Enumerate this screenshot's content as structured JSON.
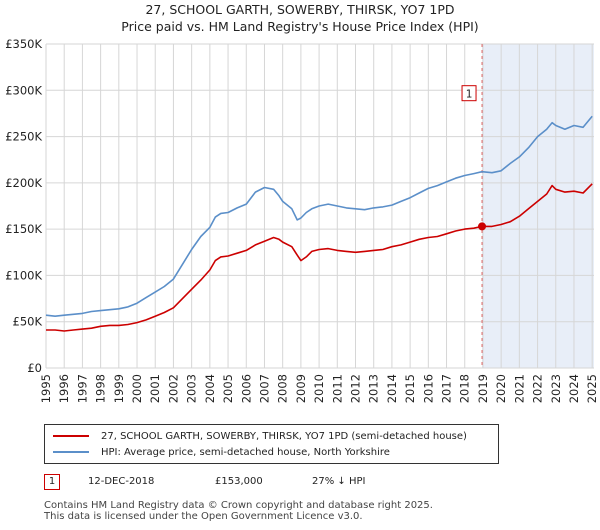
{
  "title_line1": "27, SCHOOL GARTH, SOWERBY, THIRSK, YO7 1PD",
  "title_line2": "Price paid vs. HM Land Registry's House Price Index (HPI)",
  "chart_data": {
    "type": "line",
    "title": "Price paid vs. HM Land Registry's House Price Index (HPI)",
    "xlim": [
      1995.0,
      2025.1
    ],
    "ylim": [
      0,
      350000
    ],
    "x_ticks": [
      1995,
      1996,
      1997,
      1998,
      1999,
      2000,
      2001,
      2002,
      2003,
      2004,
      2005,
      2006,
      2007,
      2008,
      2009,
      2010,
      2011,
      2012,
      2013,
      2014,
      2015,
      2016,
      2017,
      2018,
      2019,
      2020,
      2021,
      2022,
      2023,
      2024,
      2025
    ],
    "x_tick_labels": [
      "1995",
      "1996",
      "1997",
      "1998",
      "1999",
      "2000",
      "2001",
      "2002",
      "2003",
      "2004",
      "2005",
      "2006",
      "2007",
      "2008",
      "2009",
      "2010",
      "2011",
      "2012",
      "2013",
      "2014",
      "2015",
      "2016",
      "2017",
      "2018",
      "2019",
      "2020",
      "2021",
      "2022",
      "2023",
      "2024",
      "2025"
    ],
    "y_ticks": [
      0,
      50000,
      100000,
      150000,
      200000,
      250000,
      300000,
      350000
    ],
    "y_tick_labels": [
      "£0",
      "£50K",
      "£100K",
      "£150K",
      "£200K",
      "£250K",
      "£300K",
      "£350K"
    ],
    "grid": true,
    "shaded_region": [
      2018.95,
      2025.1
    ],
    "series": [
      {
        "name": "27, SCHOOL GARTH, SOWERBY, THIRSK, YO7 1PD (semi-detached house)",
        "color": "#cc0000",
        "x": [
          1995.0,
          1995.5,
          1996.0,
          1996.5,
          1997.0,
          1997.5,
          1998.0,
          1998.5,
          1999.0,
          1999.5,
          2000.0,
          2000.5,
          2001.0,
          2001.5,
          2002.0,
          2002.5,
          2003.0,
          2003.5,
          2004.0,
          2004.3,
          2004.6,
          2005.0,
          2005.5,
          2006.0,
          2006.5,
          2007.0,
          2007.5,
          2007.8,
          2008.0,
          2008.5,
          2008.8,
          2009.0,
          2009.3,
          2009.6,
          2010.0,
          2010.5,
          2011.0,
          2011.5,
          2012.0,
          2012.5,
          2013.0,
          2013.5,
          2014.0,
          2014.5,
          2015.0,
          2015.5,
          2016.0,
          2016.5,
          2017.0,
          2017.5,
          2018.0,
          2018.5,
          2018.95,
          2019.5,
          2020.0,
          2020.5,
          2021.0,
          2021.5,
          2022.0,
          2022.5,
          2022.8,
          2023.0,
          2023.5,
          2024.0,
          2024.5,
          2025.0
        ],
        "y": [
          41000,
          41000,
          40000,
          41000,
          42000,
          43000,
          45000,
          46000,
          46000,
          47000,
          49000,
          52000,
          56000,
          60000,
          65000,
          75000,
          85000,
          95000,
          106000,
          116000,
          120000,
          121000,
          124000,
          127000,
          133000,
          137000,
          141000,
          139000,
          136000,
          131000,
          122000,
          116000,
          120000,
          126000,
          128000,
          129000,
          127000,
          126000,
          125000,
          126000,
          127000,
          128000,
          131000,
          133000,
          136000,
          139000,
          141000,
          142000,
          145000,
          148000,
          150000,
          151000,
          153000,
          153000,
          155000,
          158000,
          164000,
          172000,
          180000,
          188000,
          197000,
          193000,
          190000,
          191000,
          189000,
          199000
        ]
      },
      {
        "name": "HPI: Average price, semi-detached house, North Yorkshire",
        "color": "#5b8fc9",
        "x": [
          1995.0,
          1995.5,
          1996.0,
          1996.5,
          1997.0,
          1997.5,
          1998.0,
          1998.5,
          1999.0,
          1999.5,
          2000.0,
          2000.5,
          2001.0,
          2001.5,
          2002.0,
          2002.5,
          2003.0,
          2003.5,
          2004.0,
          2004.3,
          2004.6,
          2005.0,
          2005.5,
          2006.0,
          2006.5,
          2007.0,
          2007.5,
          2007.8,
          2008.0,
          2008.5,
          2008.8,
          2009.0,
          2009.3,
          2009.6,
          2010.0,
          2010.5,
          2011.0,
          2011.5,
          2012.0,
          2012.5,
          2013.0,
          2013.5,
          2014.0,
          2014.5,
          2015.0,
          2015.5,
          2016.0,
          2016.5,
          2017.0,
          2017.5,
          2018.0,
          2018.5,
          2018.95,
          2019.5,
          2020.0,
          2020.5,
          2021.0,
          2021.5,
          2022.0,
          2022.5,
          2022.8,
          2023.0,
          2023.5,
          2024.0,
          2024.5,
          2025.0
        ],
        "y": [
          57000,
          56000,
          57000,
          58000,
          59000,
          61000,
          62000,
          63000,
          64000,
          66000,
          70000,
          76000,
          82000,
          88000,
          96000,
          112000,
          128000,
          142000,
          152000,
          163000,
          167000,
          168000,
          173000,
          177000,
          190000,
          195000,
          193000,
          186000,
          180000,
          172000,
          160000,
          162000,
          168000,
          172000,
          175000,
          177000,
          175000,
          173000,
          172000,
          171000,
          173000,
          174000,
          176000,
          180000,
          184000,
          189000,
          194000,
          197000,
          201000,
          205000,
          208000,
          210000,
          212000,
          211000,
          213000,
          221000,
          228000,
          238000,
          250000,
          258000,
          265000,
          262000,
          258000,
          262000,
          260000,
          272000
        ]
      }
    ],
    "annotations": [
      {
        "label": "1",
        "x": 2018.95,
        "y": 153000
      }
    ]
  },
  "legend": {
    "property_label": "27, SCHOOL GARTH, SOWERBY, THIRSK, YO7 1PD (semi-detached house)",
    "hpi_label": "HPI: Average price, semi-detached house, North Yorkshire"
  },
  "sale": {
    "number": "1",
    "date": "12-DEC-2018",
    "price": "£153,000",
    "hpi_diff": "27% ↓ HPI"
  },
  "footer": {
    "line1": "Contains HM Land Registry data © Crown copyright and database right 2025.",
    "line2": "This data is licensed under the Open Government Licence v3.0."
  }
}
